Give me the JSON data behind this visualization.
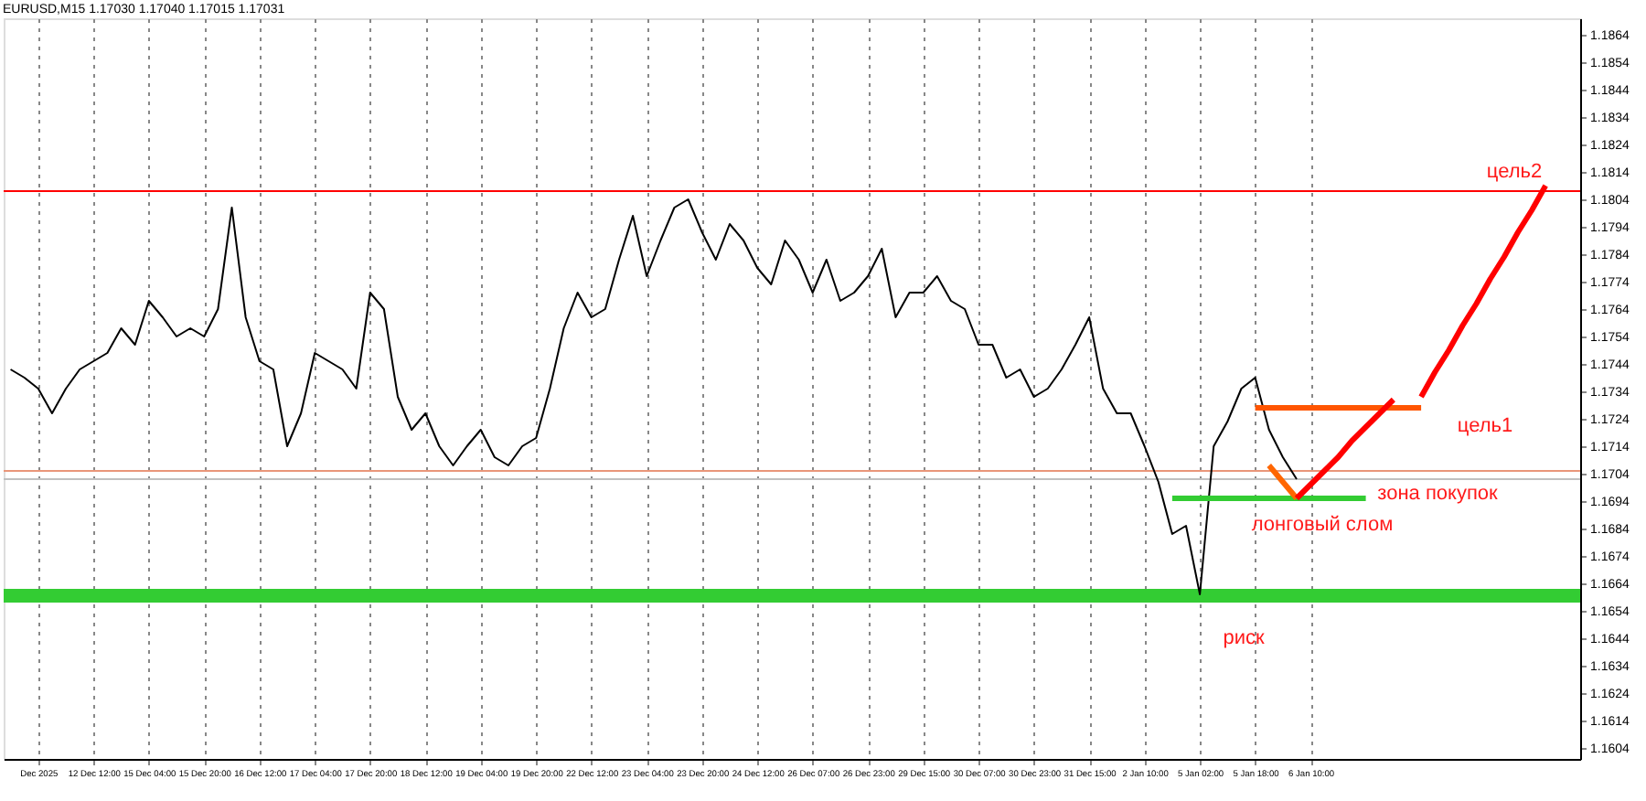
{
  "chart_data": {
    "type": "line",
    "title": "EURUSD,M15  1.17030 1.17040 1.17015 1.17031",
    "categories": [
      null,
      null,
      "Dec 2025",
      null,
      null,
      null,
      "12 Dec 12:00",
      null,
      null,
      null,
      "15 Dec 04:00",
      null,
      null,
      null,
      "15 Dec 20:00",
      null,
      null,
      null,
      "16 Dec 12:00",
      null,
      null,
      null,
      "17 Dec 04:00",
      null,
      null,
      null,
      "17 Dec 20:00",
      null,
      null,
      null,
      "18 Dec 12:00",
      null,
      null,
      null,
      "19 Dec 04:00",
      null,
      null,
      null,
      "19 Dec 20:00",
      null,
      null,
      null,
      "22 Dec 12:00",
      null,
      null,
      null,
      "23 Dec 04:00",
      null,
      null,
      null,
      "23 Dec 20:00",
      null,
      null,
      null,
      "24 Dec 12:00",
      null,
      null,
      null,
      "26 Dec 07:00",
      null,
      null,
      null,
      "26 Dec 23:00",
      null,
      null,
      null,
      "29 Dec 15:00",
      null,
      null,
      null,
      "30 Dec 07:00",
      null,
      null,
      null,
      "30 Dec 23:00",
      null,
      null,
      null,
      "31 Dec 15:00",
      null,
      null,
      null,
      "2 Jan 10:00",
      null,
      null,
      null,
      "5 Jan 02:00",
      null,
      null,
      null,
      "5 Jan 18:00",
      null,
      null,
      null,
      "6 Jan 10:00",
      null,
      null,
      null,
      null,
      null,
      null,
      null,
      null,
      null,
      null,
      null,
      null,
      null,
      null,
      null,
      null,
      null,
      null,
      null
    ],
    "series": [
      {
        "color": "#000000",
        "values": [
          1.1742,
          1.1739,
          1.1735,
          1.1726,
          1.1735,
          1.1742,
          1.1745,
          1.1748,
          1.1757,
          1.1751,
          1.1767,
          1.1761,
          1.1754,
          1.1757,
          1.1754,
          1.1764,
          1.1801,
          1.1761,
          1.1745,
          1.1742,
          1.1714,
          1.1726,
          1.1748,
          1.1745,
          1.1742,
          1.1735,
          1.177,
          1.1764,
          1.1732,
          1.172,
          1.1726,
          1.1714,
          1.1707,
          1.1714,
          1.172,
          1.171,
          1.1707,
          1.1714,
          1.1717,
          1.1735,
          1.1757,
          1.177,
          1.1761,
          1.1764,
          1.1782,
          1.1798,
          1.1776,
          1.1789,
          1.1801,
          1.1804,
          1.1792,
          1.1782,
          1.1795,
          1.1789,
          1.1779,
          1.1773,
          1.1789,
          1.1782,
          1.177,
          1.1782,
          1.1767,
          1.177,
          1.1776,
          1.1786,
          1.1761,
          1.177,
          1.177,
          1.1776,
          1.1767,
          1.1764,
          1.1751,
          1.1751,
          1.1739,
          1.1742,
          1.1732,
          1.1735,
          1.1742,
          1.1751,
          1.1761,
          1.1735,
          1.1726,
          1.1726,
          1.1714,
          1.1701,
          1.1682,
          1.1685,
          1.166,
          1.1714,
          1.1723,
          1.1735,
          1.1739,
          1.172,
          1.171,
          1.1702,
          null,
          null,
          null,
          null,
          null,
          null,
          null,
          null,
          null,
          null,
          null,
          null,
          null,
          null,
          null,
          null,
          null,
          null,
          null,
          null
        ]
      },
      {
        "color": "#33cc33",
        "values": [
          null,
          null,
          null,
          null,
          null,
          null,
          null,
          null,
          null,
          null,
          null,
          null,
          null,
          null,
          null,
          null,
          null,
          null,
          null,
          null,
          null,
          null,
          null,
          null,
          null,
          null,
          null,
          null,
          null,
          null,
          null,
          null,
          null,
          null,
          null,
          null,
          null,
          null,
          null,
          null,
          null,
          null,
          null,
          null,
          null,
          null,
          null,
          null,
          null,
          null,
          null,
          null,
          null,
          null,
          null,
          null,
          null,
          null,
          null,
          null,
          null,
          null,
          null,
          null,
          null,
          null,
          null,
          null,
          null,
          null,
          null,
          null,
          null,
          null,
          null,
          null,
          null,
          null,
          null,
          null,
          null,
          null,
          null,
          null,
          1.1695,
          1.1695,
          1.1695,
          1.1695,
          1.1695,
          1.1695,
          1.1695,
          1.1695,
          1.1695,
          1.1695,
          1.1695,
          1.1695,
          1.1695,
          1.1695,
          1.1695,
          null,
          null,
          null,
          null,
          null,
          null,
          null,
          null,
          null,
          null,
          null,
          null,
          null,
          null,
          null
        ]
      },
      {
        "color": "#ff5500",
        "values": [
          null,
          null,
          null,
          null,
          null,
          null,
          null,
          null,
          null,
          null,
          null,
          null,
          null,
          null,
          null,
          null,
          null,
          null,
          null,
          null,
          null,
          null,
          null,
          null,
          null,
          null,
          null,
          null,
          null,
          null,
          null,
          null,
          null,
          null,
          null,
          null,
          null,
          null,
          null,
          null,
          null,
          null,
          null,
          null,
          null,
          null,
          null,
          null,
          null,
          null,
          null,
          null,
          null,
          null,
          null,
          null,
          null,
          null,
          null,
          null,
          null,
          null,
          null,
          null,
          null,
          null,
          null,
          null,
          null,
          null,
          null,
          null,
          null,
          null,
          null,
          null,
          null,
          null,
          null,
          null,
          null,
          null,
          null,
          null,
          null,
          null,
          null,
          null,
          null,
          null,
          1.1728,
          1.1728,
          1.1728,
          1.1728,
          1.1728,
          1.1728,
          1.1728,
          1.1728,
          1.1728,
          1.1728,
          1.1728,
          1.1728,
          1.1728,
          null,
          null,
          null,
          null,
          null,
          null,
          null,
          null,
          null,
          null,
          null
        ]
      },
      {
        "color": "#ff6600",
        "values": [
          null,
          null,
          null,
          null,
          null,
          null,
          null,
          null,
          null,
          null,
          null,
          null,
          null,
          null,
          null,
          null,
          null,
          null,
          null,
          null,
          null,
          null,
          null,
          null,
          null,
          null,
          null,
          null,
          null,
          null,
          null,
          null,
          null,
          null,
          null,
          null,
          null,
          null,
          null,
          null,
          null,
          null,
          null,
          null,
          null,
          null,
          null,
          null,
          null,
          null,
          null,
          null,
          null,
          null,
          null,
          null,
          null,
          null,
          null,
          null,
          null,
          null,
          null,
          null,
          null,
          null,
          null,
          null,
          null,
          null,
          null,
          null,
          null,
          null,
          null,
          null,
          null,
          null,
          null,
          null,
          null,
          null,
          null,
          null,
          null,
          null,
          null,
          null,
          null,
          null,
          null,
          1.1707,
          1.1701,
          1.1695,
          null,
          null,
          null,
          null,
          null,
          null,
          null,
          null,
          null,
          null,
          null,
          null,
          null,
          null,
          null,
          null,
          null,
          null,
          null,
          null
        ]
      },
      {
        "color": "#ff0000",
        "values": [
          null,
          null,
          null,
          null,
          null,
          null,
          null,
          null,
          null,
          null,
          null,
          null,
          null,
          null,
          null,
          null,
          null,
          null,
          null,
          null,
          null,
          null,
          null,
          null,
          null,
          null,
          null,
          null,
          null,
          null,
          null,
          null,
          null,
          null,
          null,
          null,
          null,
          null,
          null,
          null,
          null,
          null,
          null,
          null,
          null,
          null,
          null,
          null,
          null,
          null,
          null,
          null,
          null,
          null,
          null,
          null,
          null,
          null,
          null,
          null,
          null,
          null,
          null,
          null,
          null,
          null,
          null,
          null,
          null,
          null,
          null,
          null,
          null,
          null,
          null,
          null,
          null,
          null,
          null,
          null,
          null,
          null,
          null,
          null,
          null,
          null,
          null,
          null,
          null,
          null,
          null,
          null,
          null,
          1.1695,
          1.17,
          1.1705,
          1.171,
          1.1716,
          1.1721,
          1.1726,
          1.1731,
          null,
          null,
          null,
          null,
          null,
          null,
          null,
          null,
          null,
          null,
          null,
          null,
          null
        ]
      },
      {
        "color": "#ff0000",
        "values": [
          null,
          null,
          null,
          null,
          null,
          null,
          null,
          null,
          null,
          null,
          null,
          null,
          null,
          null,
          null,
          null,
          null,
          null,
          null,
          null,
          null,
          null,
          null,
          null,
          null,
          null,
          null,
          null,
          null,
          null,
          null,
          null,
          null,
          null,
          null,
          null,
          null,
          null,
          null,
          null,
          null,
          null,
          null,
          null,
          null,
          null,
          null,
          null,
          null,
          null,
          null,
          null,
          null,
          null,
          null,
          null,
          null,
          null,
          null,
          null,
          null,
          null,
          null,
          null,
          null,
          null,
          null,
          null,
          null,
          null,
          null,
          null,
          null,
          null,
          null,
          null,
          null,
          null,
          null,
          null,
          null,
          null,
          null,
          null,
          null,
          null,
          null,
          null,
          null,
          null,
          null,
          null,
          null,
          null,
          null,
          null,
          null,
          null,
          null,
          null,
          null,
          null,
          1.1732,
          1.1741,
          1.1749,
          1.1758,
          1.1766,
          1.1775,
          1.1783,
          1.1792,
          1.18,
          1.1809,
          null,
          null
        ]
      }
    ],
    "ylim": [
      1.16,
      1.187
    ],
    "yticks": [
      1.1604,
      1.1614,
      1.1624,
      1.1634,
      1.1644,
      1.1654,
      1.1664,
      1.1674,
      1.1684,
      1.1694,
      1.1704,
      1.1714,
      1.1724,
      1.1734,
      1.1744,
      1.1754,
      1.1764,
      1.1774,
      1.1784,
      1.1794,
      1.1804,
      1.1814,
      1.1824,
      1.1834,
      1.1844,
      1.1854,
      1.1864
    ],
    "ref_lines": [
      {
        "axis": "y",
        "value": 1.1807,
        "color": "#ff0000"
      },
      {
        "axis": "y",
        "value": 1.1705,
        "color": "#e9967a"
      },
      {
        "axis": "y",
        "value": 1.1702,
        "color": "#c0c0c0"
      }
    ],
    "bands": [
      {
        "axis": "y",
        "from": 1.1657,
        "to": 1.1662,
        "color": "#33cc33"
      }
    ],
    "annotations": [
      "цель2",
      "цель1",
      "зона покупок",
      "лонговый слом",
      "риск"
    ],
    "grid": "x",
    "marker": "none",
    "line_style": "solid"
  }
}
